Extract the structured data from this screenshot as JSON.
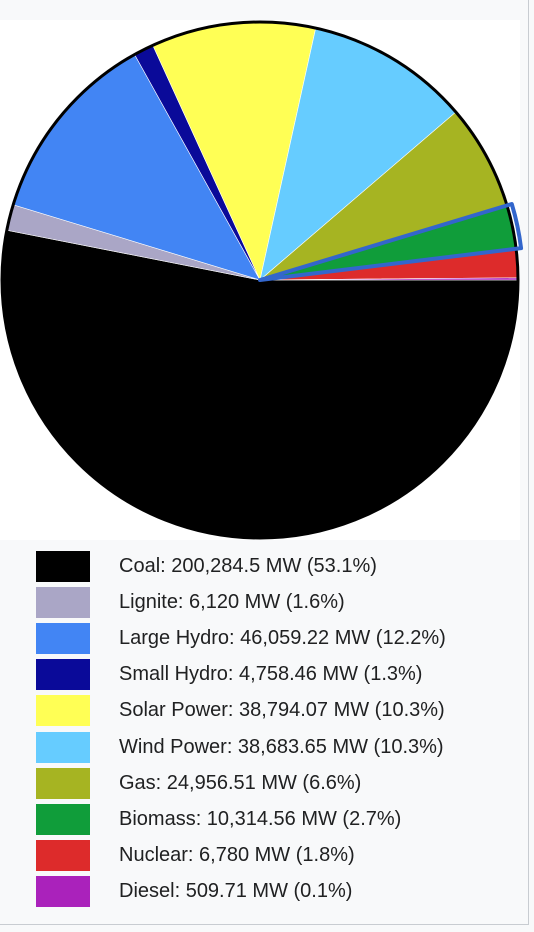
{
  "chart_data": {
    "type": "pie",
    "title": "",
    "start_angle_deg": 0,
    "direction": "clockwise",
    "highlighted_slice": "Biomass",
    "highlight_color": "#3366cc",
    "slices": [
      {
        "name": "Coal",
        "value": 200284.5,
        "percent": 53.1,
        "color": "#000000",
        "label": "Coal: 200,284.5 MW (53.1%)"
      },
      {
        "name": "Lignite",
        "value": 6120,
        "percent": 1.6,
        "color": "#aaa6c6",
        "label": "Lignite: 6,120 MW (1.6%)"
      },
      {
        "name": "Large Hydro",
        "value": 46059.22,
        "percent": 12.2,
        "color": "#4285f4",
        "label": "Large Hydro: 46,059.22 MW (12.2%)"
      },
      {
        "name": "Small Hydro",
        "value": 4758.46,
        "percent": 1.3,
        "color": "#0a0a99",
        "label": "Small Hydro: 4,758.46 MW (1.3%)"
      },
      {
        "name": "Solar Power",
        "value": 38794.07,
        "percent": 10.3,
        "color": "#ffff55",
        "label": "Solar Power: 38,794.07 MW (10.3%)"
      },
      {
        "name": "Wind Power",
        "value": 38683.65,
        "percent": 10.3,
        "color": "#66ccff",
        "label": "Wind Power: 38,683.65 MW (10.3%)"
      },
      {
        "name": "Gas",
        "value": 24956.51,
        "percent": 6.6,
        "color": "#a6b422",
        "label": "Gas: 24,956.51 MW (6.6%)"
      },
      {
        "name": "Biomass",
        "value": 10314.56,
        "percent": 2.7,
        "color": "#109d3a",
        "label": "Biomass: 10,314.56 MW (2.7%)"
      },
      {
        "name": "Nuclear",
        "value": 6780,
        "percent": 1.8,
        "color": "#dd2b2b",
        "label": "Nuclear: 6,780 MW (1.8%)"
      },
      {
        "name": "Diesel",
        "value": 509.71,
        "percent": 0.1,
        "color": "#aa22bb",
        "label": "Diesel: 509.71 MW (0.1%)"
      }
    ],
    "legend_placement": "bottom"
  }
}
